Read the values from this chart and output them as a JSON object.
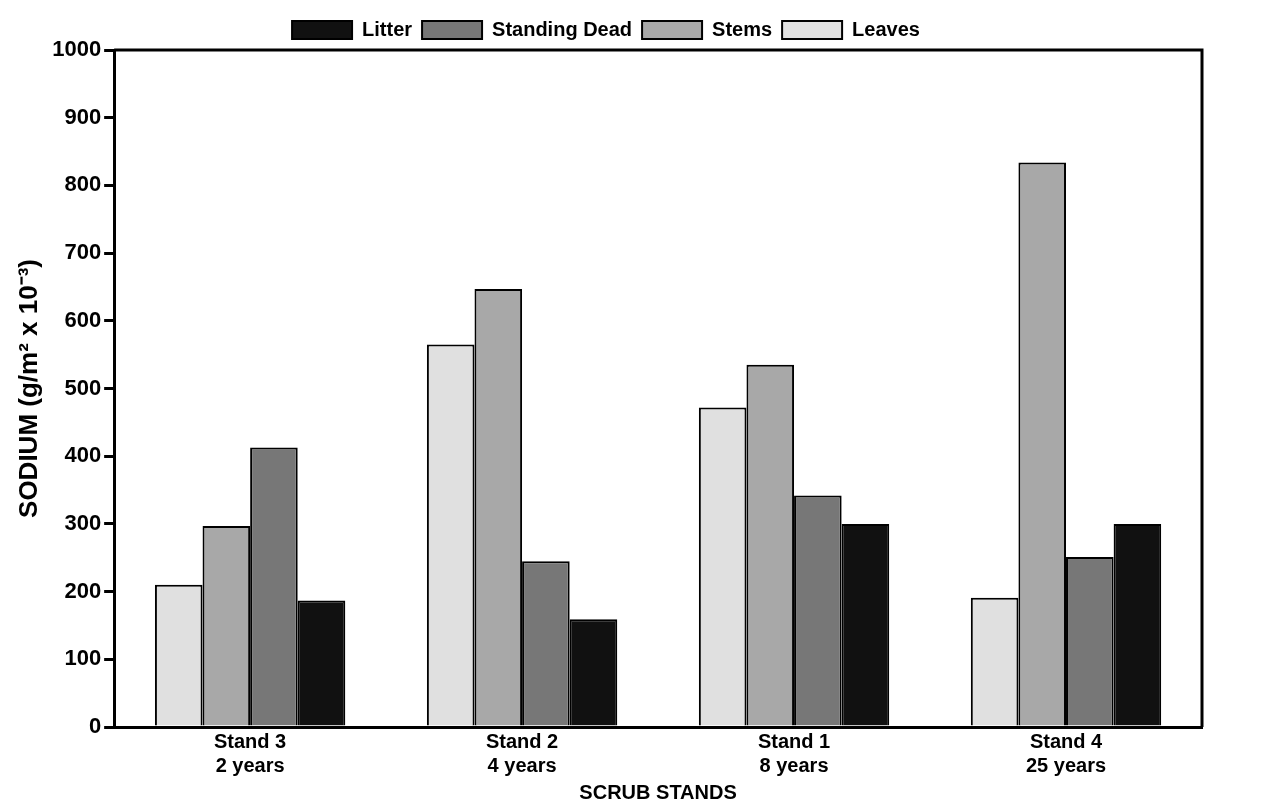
{
  "chart_data": {
    "type": "bar",
    "xlabel": "SCRUB STANDS",
    "ylabel": "SODIUM (g/m² x 10⁻³)",
    "categories": [
      "Stand 3\n2 years",
      "Stand 2\n4 years",
      "Stand 1\n8 years",
      "Stand 4\n25 years"
    ],
    "series": [
      {
        "name": "Leaves",
        "color": "#e0e0e0",
        "values": [
          210,
          565,
          472,
          191
        ]
      },
      {
        "name": "Stems",
        "color": "#a8a8a8",
        "values": [
          297,
          647,
          535,
          834
        ]
      },
      {
        "name": "Standing Dead",
        "color": "#777777",
        "values": [
          413,
          245,
          342,
          251
        ]
      },
      {
        "name": "Litter",
        "color": "#111111",
        "values": [
          187,
          159,
          300,
          300
        ]
      }
    ],
    "ylim": [
      0,
      1000
    ],
    "yticks": [
      0,
      100,
      200,
      300,
      400,
      500,
      600,
      700,
      800,
      900,
      1000
    ],
    "grid": false,
    "legend": "top"
  }
}
